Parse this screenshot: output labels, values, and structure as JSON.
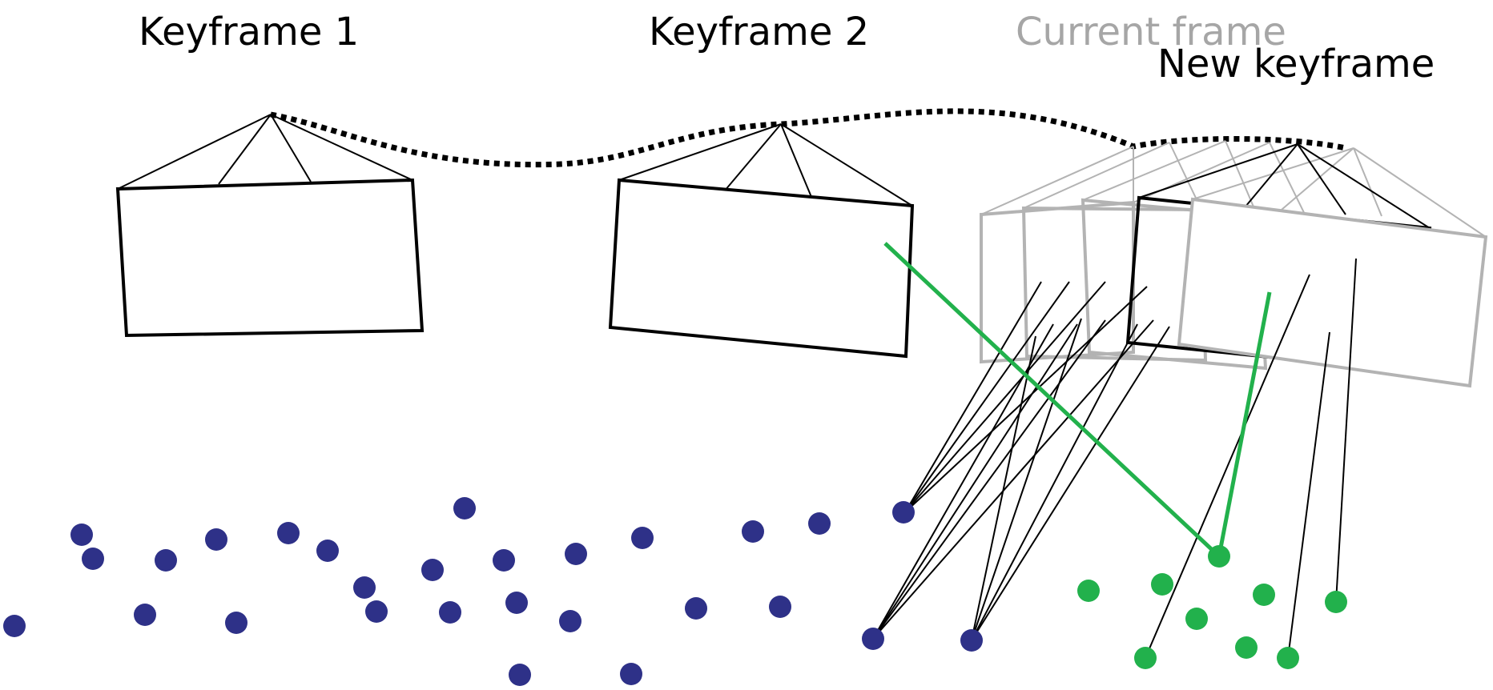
{
  "labels": {
    "keyframe_1": "Keyframe 1",
    "keyframe_2": "Keyframe 2",
    "current_frame": "Current frame",
    "new_keyframe": "New keyframe"
  },
  "colors": {
    "map_point": "#2e3188",
    "new_point": "#22b14c",
    "active_frame": "#000000",
    "past_frame": "#b3b3b3",
    "match_line": "#22b14c"
  }
}
